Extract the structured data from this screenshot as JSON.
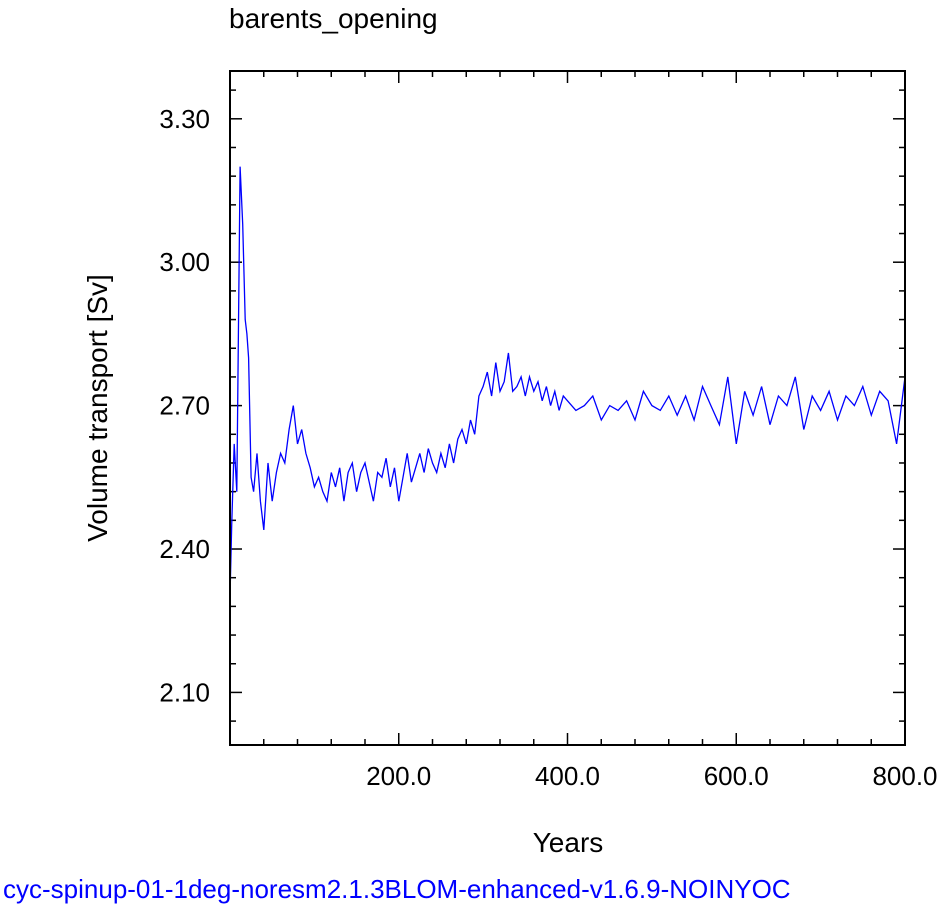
{
  "chart_data": {
    "type": "line",
    "title": "barents_opening",
    "xlabel": "Years",
    "ylabel": "Volume transport [Sv]",
    "xlim": [
      0,
      800
    ],
    "ylim": [
      1.99,
      3.4
    ],
    "x_ticks": [
      200,
      400,
      600,
      800
    ],
    "x_tick_labels": [
      "200.0",
      "400.0",
      "600.0",
      "800.0"
    ],
    "y_ticks": [
      2.1,
      2.4,
      2.7,
      3.0,
      3.3
    ],
    "y_tick_labels": [
      "2.10",
      "2.40",
      "2.70",
      "3.00",
      "3.30"
    ],
    "grid": false,
    "line_color": "#0000ff",
    "series": [
      {
        "x": [
          0,
          2,
          5,
          8,
          12,
          15,
          18,
          20,
          22,
          25,
          28,
          32,
          36,
          40,
          45,
          50,
          55,
          60,
          65,
          70,
          75,
          80,
          85,
          90,
          95,
          100,
          105,
          110,
          115,
          120,
          125,
          130,
          135,
          140,
          145,
          150,
          155,
          160,
          165,
          170,
          175,
          180,
          185,
          190,
          195,
          200,
          205,
          210,
          215,
          220,
          225,
          230,
          235,
          240,
          245,
          250,
          255,
          260,
          265,
          270,
          275,
          280,
          285,
          290,
          295,
          300,
          305,
          310,
          315,
          320,
          325,
          330,
          335,
          340,
          345,
          350,
          355,
          360,
          365,
          370,
          375,
          380,
          385,
          390,
          395,
          400,
          410,
          420,
          430,
          440,
          450,
          460,
          470,
          480,
          490,
          500,
          510,
          520,
          530,
          540,
          550,
          560,
          570,
          580,
          590,
          600,
          610,
          620,
          630,
          640,
          650,
          660,
          670,
          680,
          690,
          700,
          710,
          720,
          730,
          740,
          750,
          760,
          770,
          780,
          790,
          800
        ],
        "y": [
          2.3,
          2.45,
          2.62,
          2.52,
          3.2,
          3.08,
          2.88,
          2.85,
          2.8,
          2.55,
          2.52,
          2.6,
          2.5,
          2.44,
          2.58,
          2.5,
          2.56,
          2.6,
          2.58,
          2.65,
          2.7,
          2.62,
          2.65,
          2.6,
          2.57,
          2.53,
          2.55,
          2.52,
          2.5,
          2.56,
          2.53,
          2.57,
          2.5,
          2.56,
          2.58,
          2.52,
          2.56,
          2.58,
          2.54,
          2.5,
          2.56,
          2.55,
          2.59,
          2.53,
          2.57,
          2.5,
          2.55,
          2.6,
          2.54,
          2.57,
          2.6,
          2.56,
          2.61,
          2.58,
          2.56,
          2.6,
          2.57,
          2.62,
          2.58,
          2.63,
          2.65,
          2.62,
          2.67,
          2.64,
          2.72,
          2.74,
          2.77,
          2.72,
          2.79,
          2.73,
          2.75,
          2.81,
          2.73,
          2.74,
          2.76,
          2.72,
          2.76,
          2.73,
          2.75,
          2.71,
          2.74,
          2.7,
          2.73,
          2.69,
          2.72,
          2.71,
          2.69,
          2.7,
          2.72,
          2.67,
          2.7,
          2.69,
          2.71,
          2.67,
          2.73,
          2.7,
          2.69,
          2.72,
          2.68,
          2.72,
          2.67,
          2.74,
          2.7,
          2.66,
          2.76,
          2.62,
          2.73,
          2.68,
          2.74,
          2.66,
          2.72,
          2.7,
          2.76,
          2.65,
          2.72,
          2.69,
          2.73,
          2.67,
          2.72,
          2.7,
          2.74,
          2.68,
          2.73,
          2.71,
          2.62,
          2.76
        ]
      }
    ]
  },
  "footer": {
    "text": "cyc-spinup-01-1deg-noresm2.1.3BLOM-enhanced-v1.6.9-NOINYOC",
    "color": "#0000ff"
  }
}
